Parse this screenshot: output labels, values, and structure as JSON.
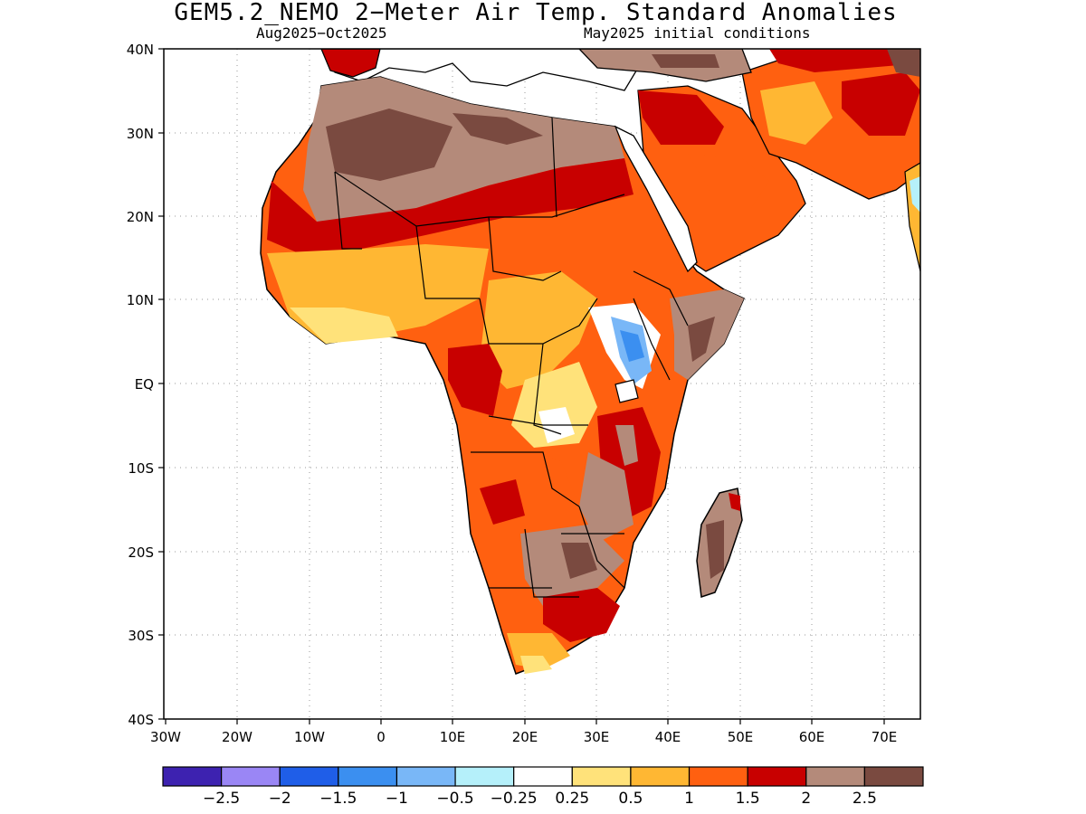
{
  "title": "GEM5.2_NEMO 2−Meter Air Temp. Standard Anomalies",
  "subtitle_left": "Aug2025−Oct2025",
  "subtitle_right": "May2025 initial conditions",
  "lat_labels": [
    "40N",
    "30N",
    "20N",
    "10N",
    "EQ",
    "10S",
    "20S",
    "30S",
    "40S"
  ],
  "lon_labels": [
    "30W",
    "20W",
    "10W",
    "0",
    "10E",
    "20E",
    "30E",
    "40E",
    "50E",
    "60E",
    "70E"
  ],
  "colorbar": {
    "colors": [
      "#3d22b0",
      "#9a86f5",
      "#1f5ee8",
      "#3b8ff0",
      "#79b7f7",
      "#b5f0fa",
      "#ffffff",
      "#ffe27a",
      "#ffb733",
      "#ff6010",
      "#c80000",
      "#b48a7a",
      "#7a4a40"
    ],
    "labels": [
      "−2.5",
      "−2",
      "−1.5",
      "−1",
      "−0.5",
      "−0.25",
      "0.25",
      "0.5",
      "1",
      "1.5",
      "2",
      "2.5"
    ]
  }
}
